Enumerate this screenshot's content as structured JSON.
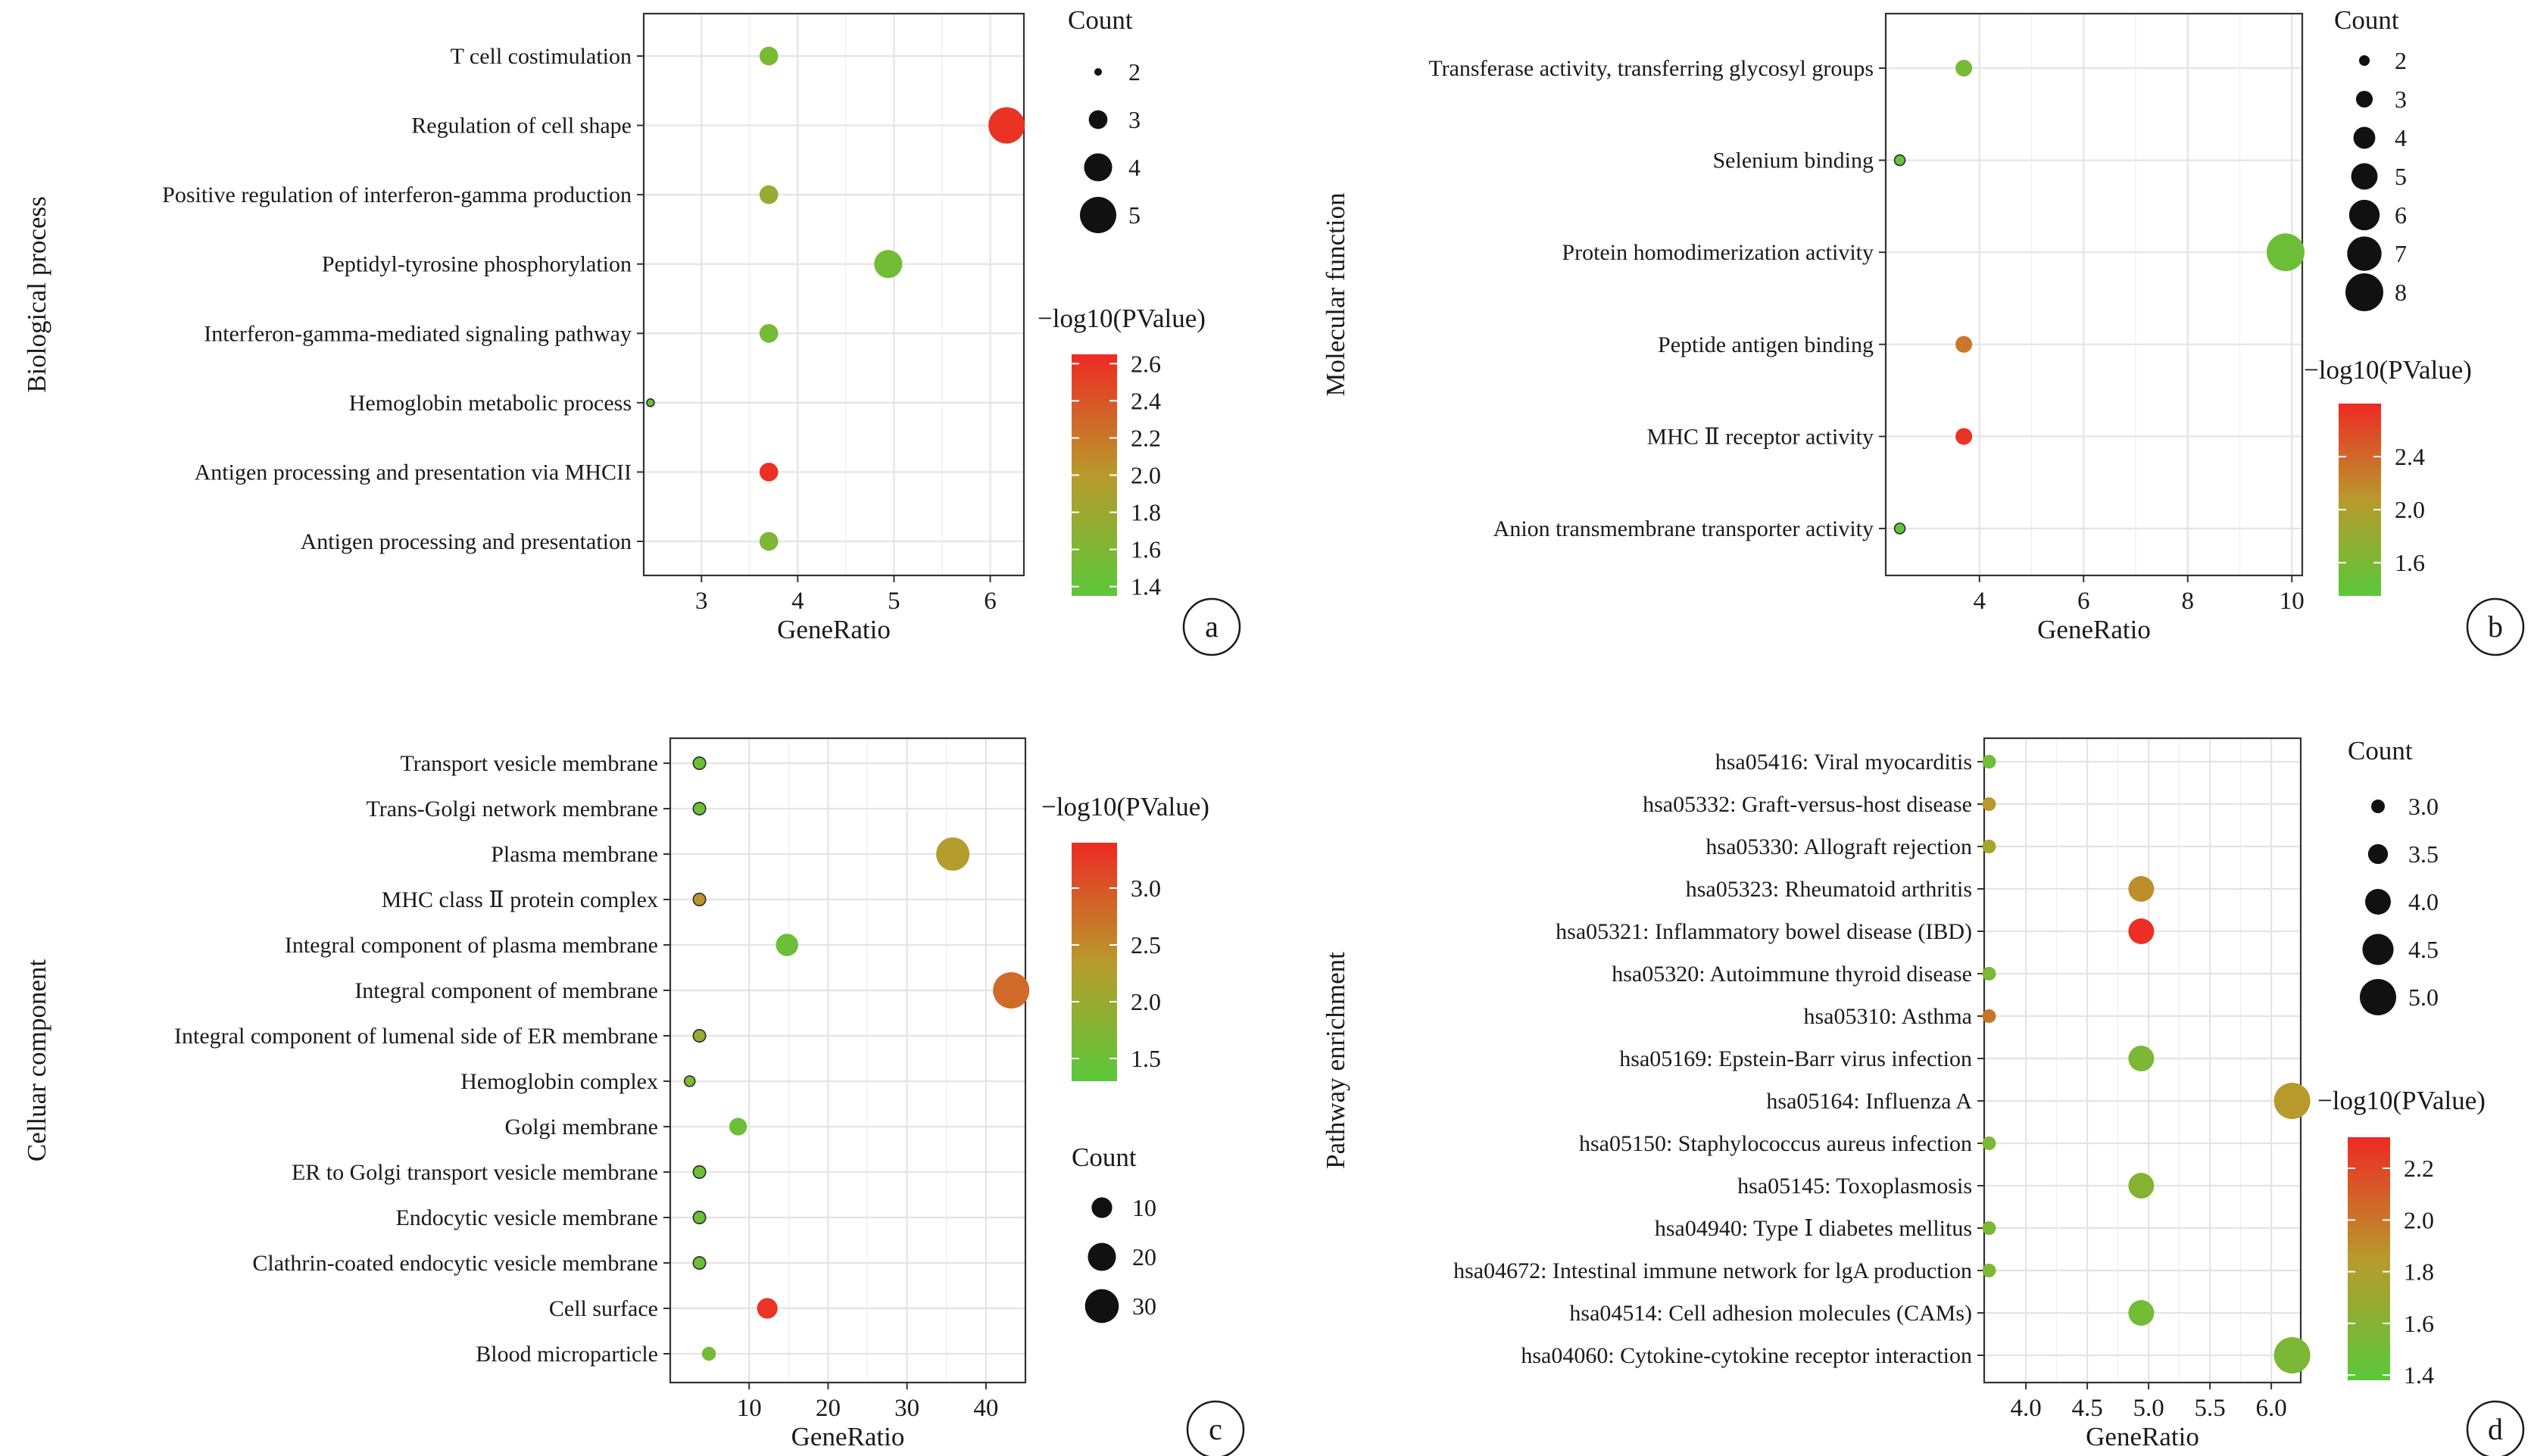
{
  "colors": {
    "low": "#5ac83a",
    "mid": "#b89a2c",
    "high": "#ee2a24",
    "grid": "#e4e4e4",
    "axis": "#333333"
  },
  "chart_data": [
    {
      "id": "a",
      "panel_label": "a",
      "type": "scatter",
      "ylabel": "Biological process",
      "xlabel": "GeneRatio",
      "xlim": [
        2.4,
        6.35
      ],
      "xticks": [
        3,
        4,
        5,
        6
      ],
      "categories": [
        "T cell costimulation",
        "Regulation of cell shape",
        "Positive regulation of interferon-gamma production",
        "Peptidyl-tyrosine phosphorylation",
        "Interferon-gamma-mediated signaling pathway",
        "Hemoglobin metabolic process",
        "Antigen processing and presentation via MHCII",
        "Antigen processing and presentation"
      ],
      "x": [
        3.7,
        6.17,
        3.7,
        4.94,
        3.7,
        2.47,
        3.7,
        3.7
      ],
      "count": [
        3,
        5,
        3,
        4,
        3,
        2,
        3,
        3
      ],
      "neglog10p": [
        1.58,
        2.6,
        1.78,
        1.52,
        1.55,
        1.45,
        2.62,
        1.6
      ],
      "size_legend": {
        "title": "Count",
        "values": [
          2,
          3,
          4,
          5
        ]
      },
      "color_legend": {
        "title": "−log10(PValue)",
        "min": 1.35,
        "max": 2.65,
        "ticks": [
          2.6,
          2.4,
          2.2,
          2.0,
          1.8,
          1.6,
          1.4
        ]
      }
    },
    {
      "id": "b",
      "panel_label": "b",
      "type": "scatter",
      "ylabel": "Molecular function",
      "xlabel": "GeneRatio",
      "xlim": [
        2.2,
        10.2
      ],
      "xticks": [
        4,
        6,
        8,
        10
      ],
      "categories": [
        "Transferase activity, transferring glycosyl groups",
        "Selenium binding",
        "Protein homodimerization activity",
        "Peptide antigen binding",
        "MHC Ⅱ receptor activity",
        "Anion transmembrane transporter activity"
      ],
      "x": [
        3.7,
        2.47,
        9.88,
        3.7,
        3.7,
        2.47
      ],
      "count": [
        3,
        2,
        8,
        3,
        3,
        2
      ],
      "neglog10p": [
        1.58,
        1.45,
        1.5,
        2.3,
        2.75,
        1.42
      ],
      "size_legend": {
        "title": "Count",
        "values": [
          2,
          3,
          4,
          5,
          6,
          7,
          8
        ]
      },
      "color_legend": {
        "title": "−log10(PValue)",
        "min": 1.35,
        "max": 2.8,
        "ticks": [
          2.4,
          2.0,
          1.6
        ]
      }
    },
    {
      "id": "c",
      "panel_label": "c",
      "type": "scatter",
      "ylabel": "Celluar component",
      "xlabel": "GeneRatio",
      "xlim": [
        0,
        45
      ],
      "xticks": [
        10,
        20,
        30,
        40
      ],
      "categories": [
        "Transport vesicle membrane",
        "Trans-Golgi network membrane",
        "Plasma membrane",
        "MHC class Ⅱ protein complex",
        "Integral component of plasma membrane",
        "Integral component of membrane",
        "Integral component of lumenal side of ER membrane",
        "Hemoglobin complex",
        "Golgi membrane",
        "ER to Golgi transport vesicle membrane",
        "Endocytic vesicle membrane",
        "Clathrin-coated endocytic vesicle membrane",
        "Cell surface",
        "Blood microparticle"
      ],
      "x": [
        3.7,
        3.7,
        35.8,
        3.7,
        14.8,
        43.2,
        3.7,
        2.47,
        8.6,
        3.7,
        3.7,
        3.7,
        12.3,
        4.9
      ],
      "count": [
        3,
        3,
        29,
        3,
        12,
        35,
        3,
        2,
        7,
        3,
        3,
        3,
        10,
        4
      ],
      "neglog10p": [
        1.5,
        1.5,
        2.3,
        2.4,
        1.5,
        2.8,
        2.0,
        1.7,
        1.5,
        1.5,
        1.5,
        1.5,
        3.3,
        1.6
      ],
      "size_legend": {
        "title": "Count",
        "values": [
          10,
          20,
          30
        ]
      },
      "color_legend": {
        "title": "−log10(PValue)",
        "min": 1.3,
        "max": 3.4,
        "ticks": [
          3.0,
          2.5,
          2.0,
          1.5
        ]
      }
    },
    {
      "id": "d",
      "panel_label": "d",
      "type": "scatter",
      "ylabel": "Pathway enrichment",
      "xlabel": "GeneRatio",
      "xlim": [
        3.66,
        6.24
      ],
      "xticks": [
        "4.0",
        "4.5",
        "5.0",
        "5.5",
        "6.0"
      ],
      "categories": [
        "hsa05416: Viral myocarditis",
        "hsa05332: Graft-versus-host disease",
        "hsa05330: Allograft rejection",
        "hsa05323: Rheumatoid arthritis",
        "hsa05321: Inflammatory bowel disease (IBD)",
        "hsa05320: Autoimmune thyroid disease",
        "hsa05310: Asthma",
        "hsa05169: Epstein-Barr virus infection",
        "hsa05164: Influenza A",
        "hsa05150: Staphylococcus aureus infection",
        "hsa05145: Toxoplasmosis",
        "hsa04940: Type Ⅰ diabetes mellitus",
        "hsa04672: Intestinal immune network for lgA production",
        "hsa04514: Cell adhesion molecules (CAMs)",
        "hsa04060: Cytokine-cytokine receptor interaction"
      ],
      "x": [
        3.7,
        3.7,
        3.7,
        4.94,
        4.94,
        3.7,
        3.7,
        4.94,
        6.17,
        3.7,
        4.94,
        3.7,
        3.7,
        4.94,
        6.17
      ],
      "count": [
        3,
        3,
        3,
        4,
        4,
        3,
        3,
        4,
        5,
        3,
        4,
        3,
        3,
        4,
        5
      ],
      "neglog10p": [
        1.5,
        1.85,
        1.75,
        1.9,
        2.3,
        1.55,
        2.0,
        1.55,
        1.85,
        1.55,
        1.6,
        1.55,
        1.55,
        1.5,
        1.55
      ],
      "size_legend": {
        "title": "Count",
        "values": [
          "3.0",
          "3.5",
          "4.0",
          "4.5",
          "5.0"
        ]
      },
      "color_legend": {
        "title": "−log10(PValue)",
        "min": 1.38,
        "max": 2.32,
        "ticks": [
          2.2,
          2.0,
          1.8,
          1.6,
          1.4
        ]
      }
    }
  ]
}
